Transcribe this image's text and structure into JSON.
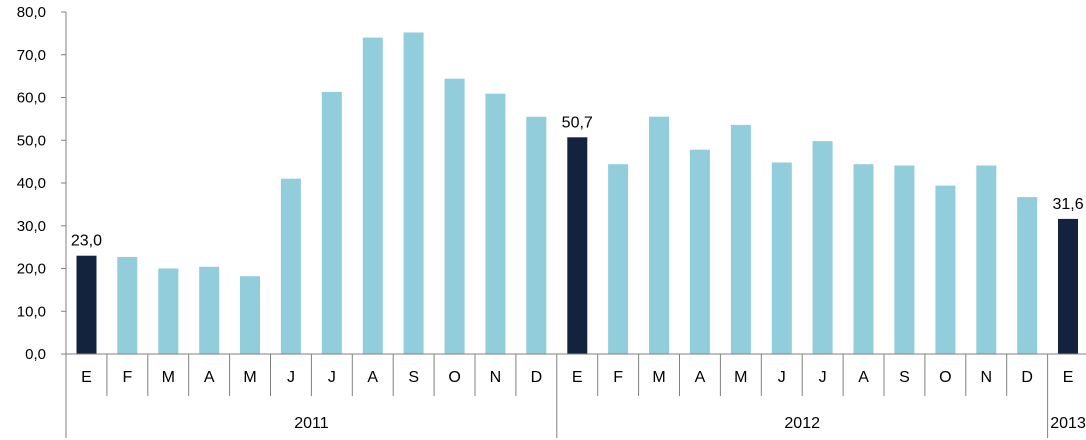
{
  "chart_data": {
    "type": "bar",
    "title": "",
    "xlabel": "",
    "ylabel": "",
    "ylim": [
      0,
      80
    ],
    "yticks": [
      "0,0",
      "10,0",
      "20,0",
      "30,0",
      "40,0",
      "50,0",
      "60,0",
      "70,0",
      "80,0"
    ],
    "grid": false,
    "legend": "none",
    "categories": [
      "E",
      "F",
      "M",
      "A",
      "M",
      "J",
      "J",
      "A",
      "S",
      "O",
      "N",
      "D",
      "E",
      "F",
      "M",
      "A",
      "M",
      "J",
      "J",
      "A",
      "S",
      "O",
      "N",
      "D",
      "E"
    ],
    "year_groups": [
      {
        "label": "2011",
        "count": 12
      },
      {
        "label": "2012",
        "count": 12
      },
      {
        "label": "2013",
        "count": 1
      }
    ],
    "values": [
      23.0,
      22.7,
      20.0,
      20.4,
      18.2,
      41.0,
      61.3,
      74.0,
      75.2,
      64.4,
      60.9,
      55.5,
      50.7,
      44.4,
      55.5,
      47.8,
      53.6,
      44.8,
      49.8,
      44.4,
      44.1,
      39.4,
      44.1,
      36.7,
      31.6
    ],
    "highlight_indices": [
      0,
      12,
      24
    ],
    "data_labels": [
      {
        "index": 0,
        "text": "23,0"
      },
      {
        "index": 12,
        "text": "50,7"
      },
      {
        "index": 24,
        "text": "31,6"
      }
    ],
    "colors": {
      "bar": "#92CDDC",
      "highlight": "#13233E",
      "axis": "#808080"
    }
  }
}
